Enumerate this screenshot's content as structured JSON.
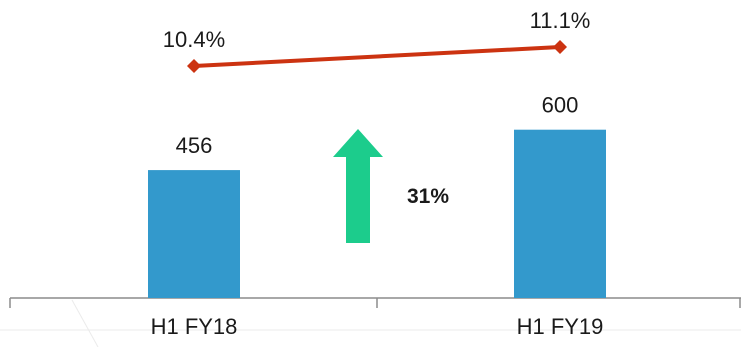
{
  "chart_data": {
    "type": "bar",
    "categories": [
      "H1 FY18",
      "H1 FY19"
    ],
    "series": [
      {
        "type": "bar",
        "values": [
          456,
          600
        ],
        "value_labels": [
          "456",
          "600"
        ],
        "color": "#3399cc"
      },
      {
        "type": "line",
        "values": [
          10.4,
          11.1
        ],
        "value_labels": [
          "10.4%",
          "11.1%"
        ],
        "color": "#cc3311",
        "marker": "diamond"
      }
    ],
    "annotation": {
      "label": "31%",
      "icon": "up-arrow-icon",
      "color": "#1ccc8c"
    },
    "title": "",
    "xlabel": "",
    "ylabel": "",
    "grid": false,
    "legend": "none"
  }
}
